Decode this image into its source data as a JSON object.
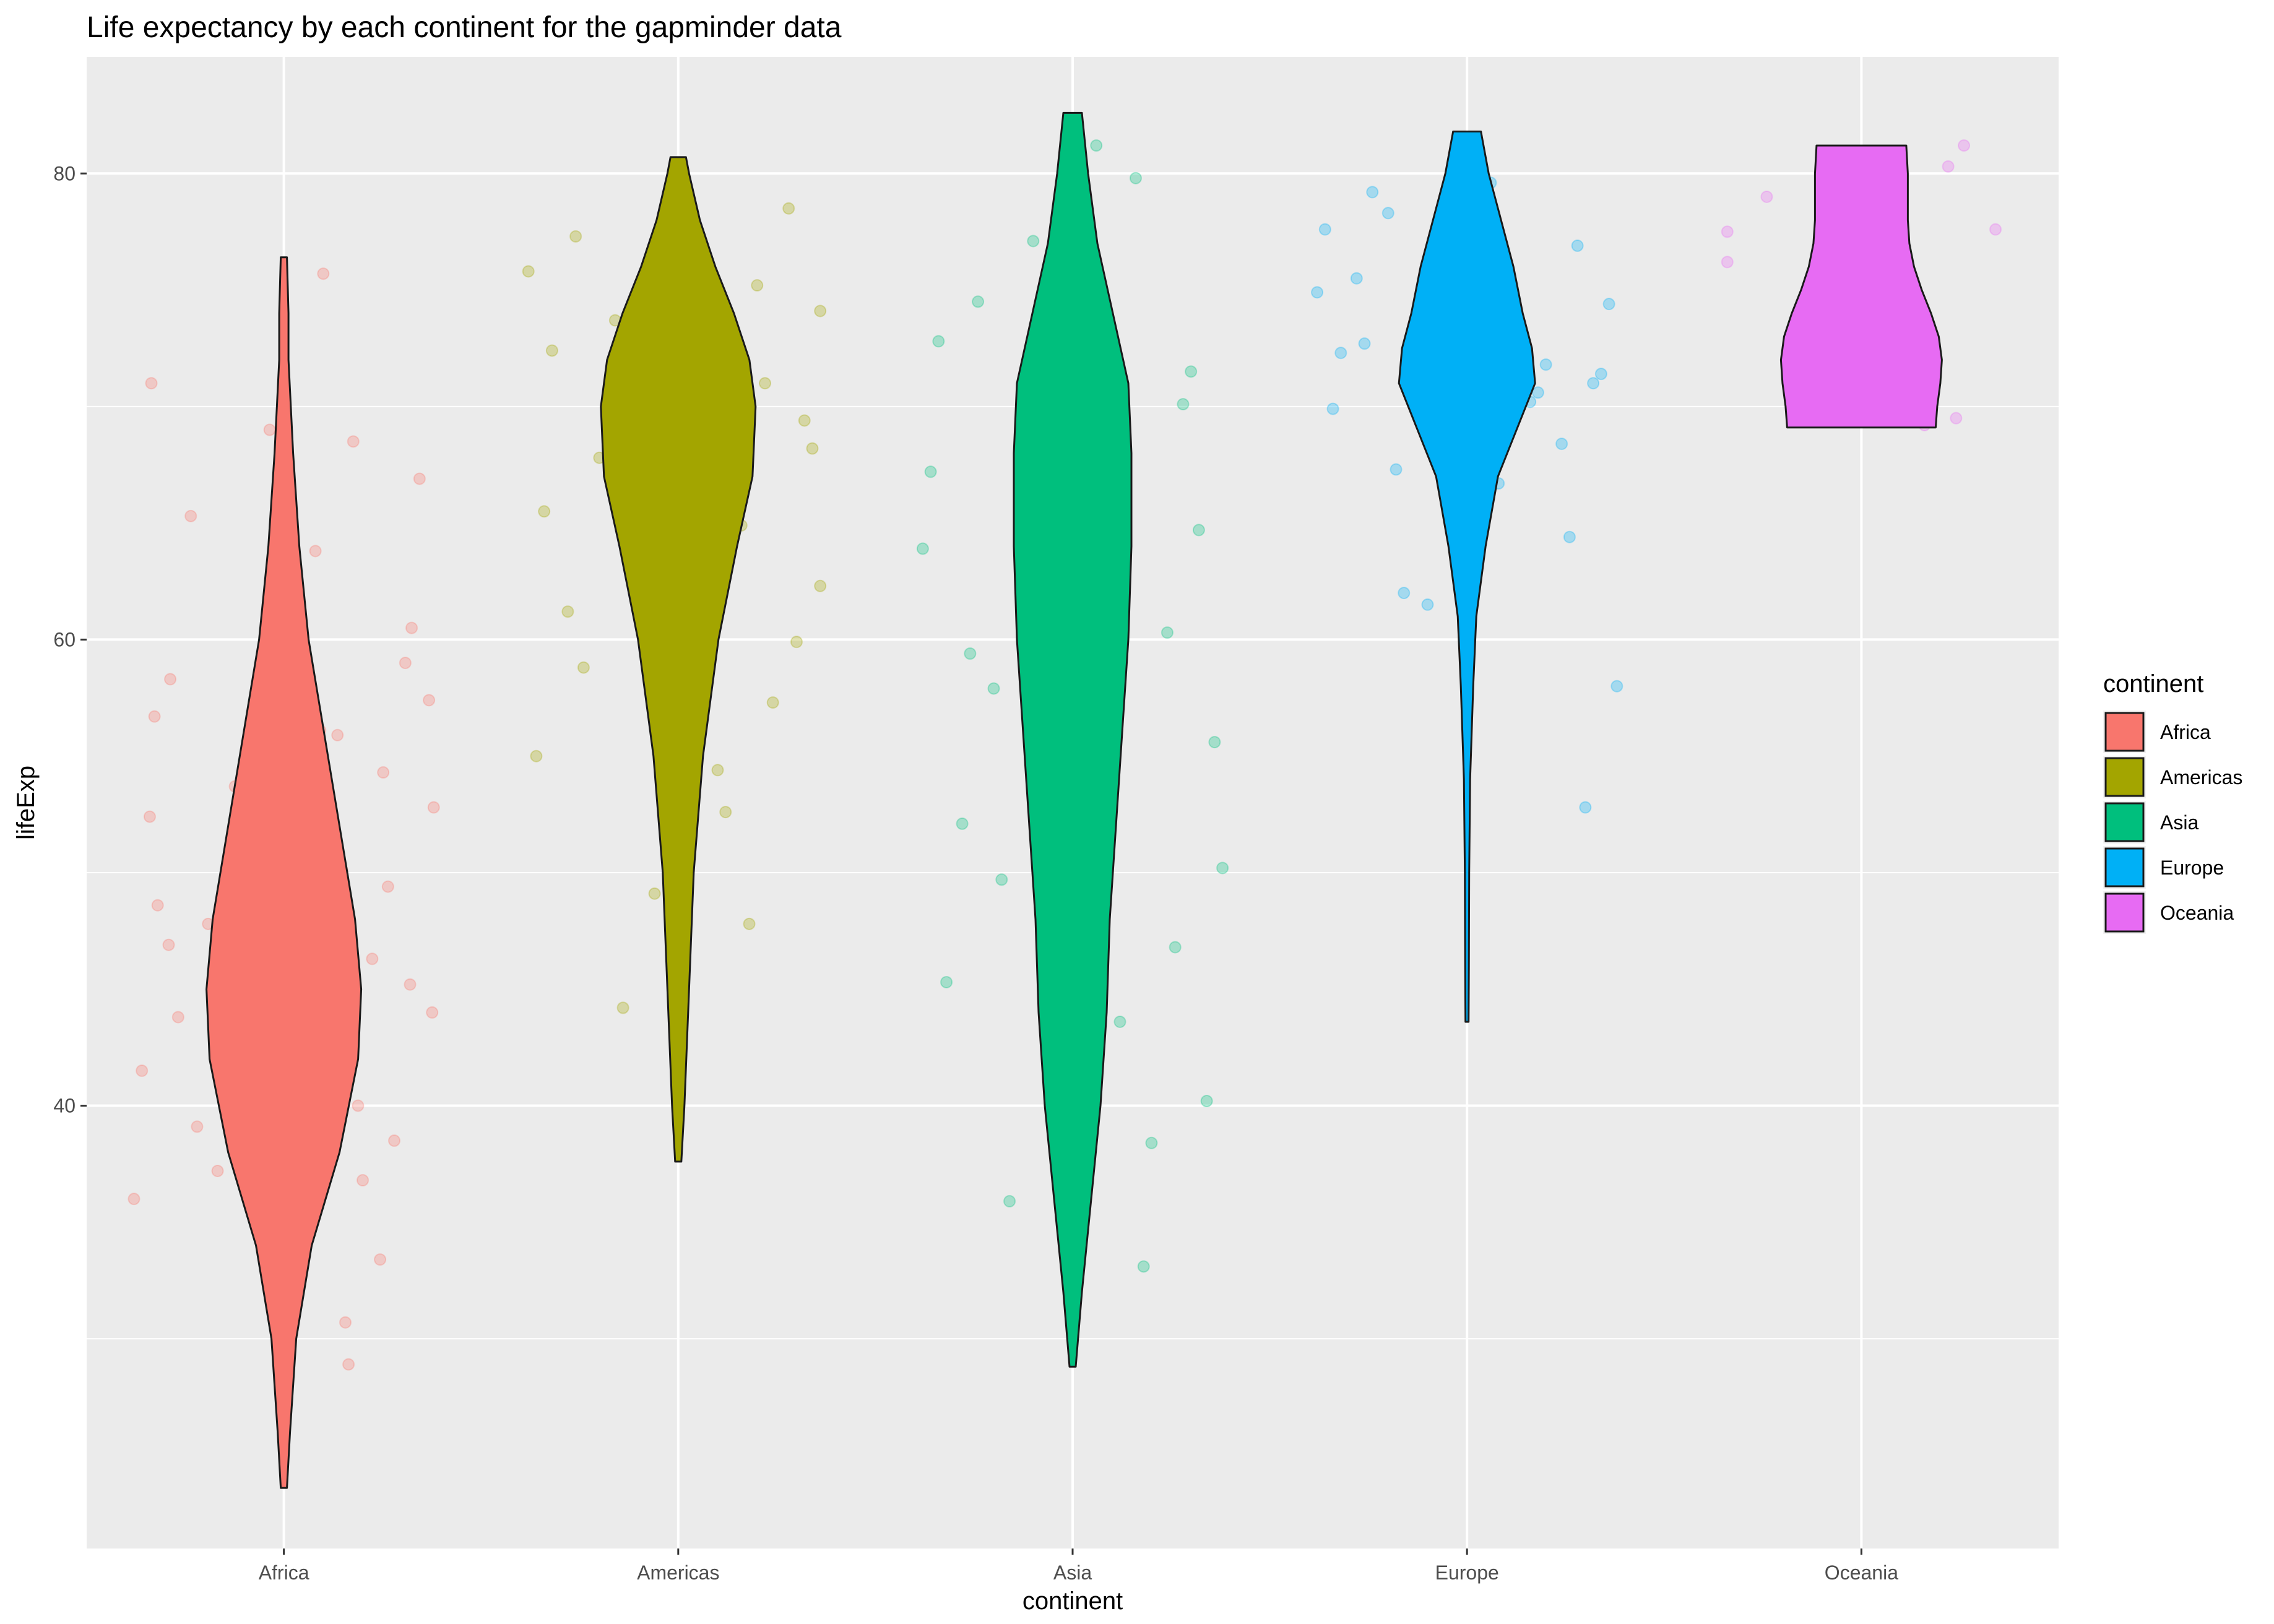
{
  "chart_data": {
    "type": "violin",
    "title": "Life expectancy by each continent for the gapminder data",
    "xlabel": "continent",
    "ylabel": "lifeExp",
    "categories": [
      "Africa",
      "Americas",
      "Asia",
      "Europe",
      "Oceania"
    ],
    "ylim": [
      21.0,
      85.0
    ],
    "yticks": [
      40,
      60,
      80
    ],
    "grid": true,
    "legend": {
      "title": "continent",
      "placement": "right",
      "entries": [
        "Africa",
        "Americas",
        "Asia",
        "Europe",
        "Oceania"
      ]
    },
    "colors": {
      "Africa": "#F8766D",
      "Americas": "#A3A500",
      "Asia": "#00BF7D",
      "Europe": "#00B0F6",
      "Oceania": "#E76BF3"
    },
    "series": [
      {
        "name": "Africa",
        "min": 23.6,
        "max": 76.4,
        "profile": [
          [
            23.6,
            0.1
          ],
          [
            26,
            0.2
          ],
          [
            30,
            0.4
          ],
          [
            34,
            0.9
          ],
          [
            38,
            1.8
          ],
          [
            42,
            2.4
          ],
          [
            45,
            2.5
          ],
          [
            48,
            2.3
          ],
          [
            52,
            1.8
          ],
          [
            56,
            1.3
          ],
          [
            60,
            0.8
          ],
          [
            64,
            0.5
          ],
          [
            68,
            0.3
          ],
          [
            72,
            0.15
          ],
          [
            74,
            0.15
          ],
          [
            76.4,
            0.1
          ]
        ],
        "points": [
          [
            -0.85,
            52.4
          ],
          [
            -0.48,
            47.8
          ],
          [
            0.8,
            45.2
          ],
          [
            -0.9,
            41.5
          ],
          [
            0.81,
            60.5
          ],
          [
            -0.01,
            32.0
          ],
          [
            -0.16,
            49.2
          ],
          [
            0.92,
            57.4
          ],
          [
            0.09,
            61.6
          ],
          [
            0.37,
            50.1
          ],
          [
            -0.09,
            69.0
          ],
          [
            0.95,
            52.8
          ],
          [
            0.47,
            40.0
          ],
          [
            -0.11,
            35.3
          ],
          [
            0.39,
            30.7
          ],
          [
            0.25,
            75.7
          ],
          [
            -0.82,
            56.7
          ],
          [
            -0.36,
            44.5
          ],
          [
            0.12,
            55.2
          ],
          [
            -0.73,
            46.9
          ],
          [
            0.66,
            49.4
          ],
          [
            -0.55,
            39.1
          ],
          [
            0.5,
            36.8
          ],
          [
            0.86,
            66.9
          ],
          [
            -0.26,
            47.1
          ],
          [
            0.15,
            42.3
          ],
          [
            -0.84,
            71.0
          ],
          [
            -0.05,
            51.8
          ],
          [
            0.63,
            54.3
          ],
          [
            -0.23,
            45.6
          ],
          [
            0.2,
            63.8
          ],
          [
            -0.67,
            43.8
          ],
          [
            0.29,
            41.2
          ],
          [
            0.7,
            38.5
          ],
          [
            -0.31,
            53.7
          ],
          [
            0.23,
            56.1
          ],
          [
            0.77,
            59.0
          ],
          [
            -0.8,
            48.6
          ],
          [
            0.56,
            46.3
          ],
          [
            -0.04,
            40.8
          ],
          [
            -0.59,
            65.3
          ],
          [
            0.41,
            28.9
          ],
          [
            -0.42,
            37.2
          ],
          [
            0.61,
            33.4
          ],
          [
            0.94,
            44.0
          ],
          [
            -0.72,
            58.3
          ],
          [
            0.44,
            68.5
          ],
          [
            0.02,
            50.7
          ],
          [
            -0.95,
            36.0
          ],
          [
            0.34,
            55.9
          ]
        ]
      },
      {
        "name": "Americas",
        "min": 37.6,
        "max": 80.7,
        "profile": [
          [
            37.6,
            0.1
          ],
          [
            40,
            0.2
          ],
          [
            45,
            0.35
          ],
          [
            50,
            0.5
          ],
          [
            55,
            0.8
          ],
          [
            60,
            1.3
          ],
          [
            64,
            1.9
          ],
          [
            67,
            2.4
          ],
          [
            70,
            2.5
          ],
          [
            72,
            2.3
          ],
          [
            74,
            1.8
          ],
          [
            76,
            1.2
          ],
          [
            78,
            0.7
          ],
          [
            80,
            0.35
          ],
          [
            80.7,
            0.25
          ]
        ],
        "points": [
          [
            -0.8,
            72.4
          ],
          [
            -0.3,
            68.9
          ],
          [
            0.5,
            75.2
          ],
          [
            0.9,
            62.3
          ],
          [
            -0.6,
            58.8
          ],
          [
            0.2,
            70.6
          ],
          [
            -0.1,
            66.1
          ],
          [
            0.7,
            78.5
          ],
          [
            -0.9,
            55.0
          ],
          [
            0.4,
            64.9
          ],
          [
            -0.4,
            73.7
          ],
          [
            0.8,
            69.4
          ],
          [
            -0.7,
            61.2
          ],
          [
            0.1,
            76.8
          ],
          [
            0.6,
            57.3
          ],
          [
            -0.2,
            71.9
          ],
          [
            0.3,
            52.6
          ],
          [
            -0.5,
            67.8
          ],
          [
            0.9,
            74.1
          ],
          [
            -0.85,
            65.5
          ],
          [
            0.45,
            47.8
          ],
          [
            -0.35,
            44.2
          ],
          [
            0.75,
            59.9
          ],
          [
            -0.65,
            77.3
          ],
          [
            0.15,
            63.4
          ],
          [
            0.55,
            71.0
          ],
          [
            -0.15,
            49.1
          ],
          [
            0.85,
            68.2
          ],
          [
            -0.95,
            75.8
          ],
          [
            0.25,
            54.4
          ]
        ]
      },
      {
        "name": "Asia",
        "min": 28.8,
        "max": 82.6,
        "profile": [
          [
            28.8,
            0.1
          ],
          [
            32,
            0.3
          ],
          [
            36,
            0.6
          ],
          [
            40,
            0.9
          ],
          [
            44,
            1.1
          ],
          [
            48,
            1.2
          ],
          [
            52,
            1.4
          ],
          [
            56,
            1.6
          ],
          [
            60,
            1.8
          ],
          [
            64,
            1.9
          ],
          [
            68,
            1.9
          ],
          [
            71,
            1.8
          ],
          [
            74,
            1.3
          ],
          [
            77,
            0.8
          ],
          [
            80,
            0.5
          ],
          [
            82.6,
            0.3
          ]
        ],
        "points": [
          [
            -0.8,
            45.3
          ],
          [
            0.7,
            70.1
          ],
          [
            -0.3,
            62.8
          ],
          [
            0.5,
            38.4
          ],
          [
            -0.6,
            74.5
          ],
          [
            0.9,
            55.6
          ],
          [
            0.2,
            48.9
          ],
          [
            -0.9,
            67.2
          ],
          [
            0.4,
            79.8
          ],
          [
            -0.1,
            41.7
          ],
          [
            0.6,
            60.3
          ],
          [
            -0.7,
            52.1
          ],
          [
            0.1,
            76.4
          ],
          [
            -0.4,
            35.9
          ],
          [
            0.8,
            64.7
          ],
          [
            -0.5,
            57.9
          ],
          [
            0.3,
            43.6
          ],
          [
            -0.85,
            72.8
          ],
          [
            0.95,
            50.2
          ],
          [
            -0.2,
            68.6
          ],
          [
            0.65,
            46.8
          ],
          [
            -0.65,
            59.4
          ],
          [
            0.15,
            81.2
          ],
          [
            0.45,
            33.1
          ],
          [
            -0.95,
            63.9
          ],
          [
            0.75,
            71.5
          ],
          [
            -0.45,
            49.7
          ],
          [
            0.05,
            56.3
          ],
          [
            0.85,
            40.2
          ],
          [
            -0.25,
            77.1
          ]
        ]
      },
      {
        "name": "Europe",
        "min": 43.6,
        "max": 81.8,
        "profile": [
          [
            43.6,
            0.05
          ],
          [
            46,
            0.06
          ],
          [
            50,
            0.07
          ],
          [
            54,
            0.1
          ],
          [
            58,
            0.2
          ],
          [
            61,
            0.3
          ],
          [
            64,
            0.6
          ],
          [
            67,
            1.0
          ],
          [
            69,
            1.6
          ],
          [
            71,
            2.2
          ],
          [
            72.5,
            2.1
          ],
          [
            74,
            1.8
          ],
          [
            76,
            1.5
          ],
          [
            78,
            1.1
          ],
          [
            80,
            0.7
          ],
          [
            81.8,
            0.45
          ]
        ],
        "points": [
          [
            -0.8,
            72.3
          ],
          [
            0.7,
            76.9
          ],
          [
            -0.3,
            69.5
          ],
          [
            0.5,
            71.8
          ],
          [
            -0.6,
            79.2
          ],
          [
            0.9,
            74.4
          ],
          [
            0.2,
            66.7
          ],
          [
            -0.9,
            77.6
          ],
          [
            0.4,
            70.2
          ],
          [
            -0.1,
            73.1
          ],
          [
            0.6,
            68.4
          ],
          [
            -0.7,
            75.5
          ],
          [
            0.1,
            80.1
          ],
          [
            -0.4,
            62.0
          ],
          [
            0.8,
            71.0
          ],
          [
            -0.5,
            78.3
          ],
          [
            0.3,
            73.9
          ],
          [
            -0.85,
            69.9
          ],
          [
            0.95,
            58.0
          ],
          [
            -0.2,
            76.2
          ],
          [
            0.65,
            64.4
          ],
          [
            -0.65,
            72.7
          ],
          [
            0.15,
            79.6
          ],
          [
            0.45,
            70.6
          ],
          [
            -0.95,
            74.9
          ],
          [
            0.75,
            52.8
          ],
          [
            -0.45,
            67.3
          ],
          [
            0.05,
            77.8
          ],
          [
            0.85,
            71.4
          ],
          [
            -0.25,
            61.5
          ]
        ]
      },
      {
        "name": "Oceania",
        "min": 69.1,
        "max": 81.2,
        "profile": [
          [
            69.1,
            2.4
          ],
          [
            70,
            2.45
          ],
          [
            71,
            2.55
          ],
          [
            72,
            2.6
          ],
          [
            73,
            2.5
          ],
          [
            74,
            2.25
          ],
          [
            75,
            1.95
          ],
          [
            76,
            1.7
          ],
          [
            77,
            1.55
          ],
          [
            78,
            1.5
          ],
          [
            79,
            1.5
          ],
          [
            80,
            1.5
          ],
          [
            81.2,
            1.45
          ]
        ],
        "points": [
          [
            -0.85,
            77.5
          ],
          [
            -0.6,
            79.0
          ],
          [
            0.55,
            80.3
          ],
          [
            0.85,
            77.6
          ],
          [
            0.65,
            81.2
          ],
          [
            -0.85,
            76.2
          ],
          [
            0.6,
            69.5
          ],
          [
            0.4,
            69.2
          ],
          [
            -0.3,
            74.6
          ],
          [
            0.3,
            71.0
          ]
        ]
      }
    ]
  }
}
